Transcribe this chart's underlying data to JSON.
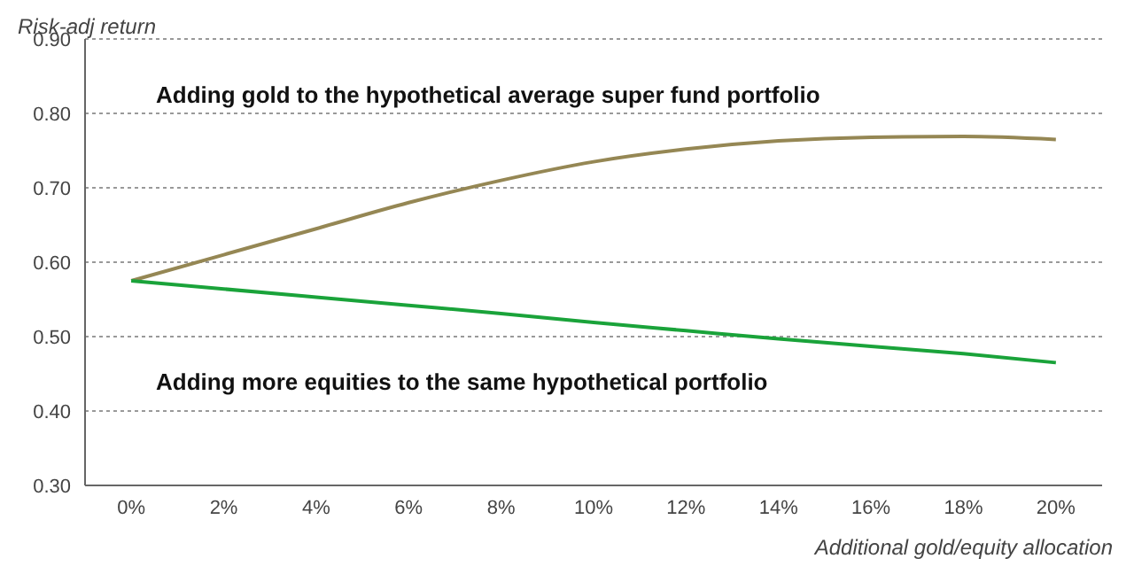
{
  "chart_data": {
    "type": "line",
    "xlabel": "Additional gold/equity allocation",
    "ylabel": "Risk-adj return",
    "x": [
      0,
      2,
      4,
      6,
      8,
      10,
      12,
      14,
      16,
      18,
      20
    ],
    "series": [
      {
        "name": "Adding gold to the hypothetical average super fund portfolio",
        "color": "#958754",
        "values": [
          0.575,
          0.61,
          0.645,
          0.68,
          0.71,
          0.735,
          0.752,
          0.763,
          0.768,
          0.769,
          0.765
        ]
      },
      {
        "name": "Adding more equities to the same hypothetical portfolio",
        "color": "#1aa33a",
        "values": [
          0.575,
          0.564,
          0.553,
          0.542,
          0.531,
          0.519,
          0.508,
          0.497,
          0.487,
          0.477,
          0.465
        ]
      }
    ],
    "xlim": [
      -1,
      21
    ],
    "xticks": [
      {
        "value": 0,
        "label": "0%"
      },
      {
        "value": 2,
        "label": "2%"
      },
      {
        "value": 4,
        "label": "4%"
      },
      {
        "value": 6,
        "label": "6%"
      },
      {
        "value": 8,
        "label": "8%"
      },
      {
        "value": 10,
        "label": "10%"
      },
      {
        "value": 12,
        "label": "12%"
      },
      {
        "value": 14,
        "label": "14%"
      },
      {
        "value": 16,
        "label": "16%"
      },
      {
        "value": 18,
        "label": "18%"
      },
      {
        "value": 20,
        "label": "20%"
      }
    ],
    "ylim": [
      0.3,
      0.9
    ],
    "yticks": [
      {
        "value": 0.3,
        "label": "0.30"
      },
      {
        "value": 0.4,
        "label": "0.40"
      },
      {
        "value": 0.5,
        "label": "0.50"
      },
      {
        "value": 0.6,
        "label": "0.60"
      },
      {
        "value": 0.7,
        "label": "0.70"
      },
      {
        "value": 0.8,
        "label": "0.80"
      },
      {
        "value": 0.9,
        "label": "0.90"
      }
    ],
    "grid": "y",
    "legend": false
  }
}
